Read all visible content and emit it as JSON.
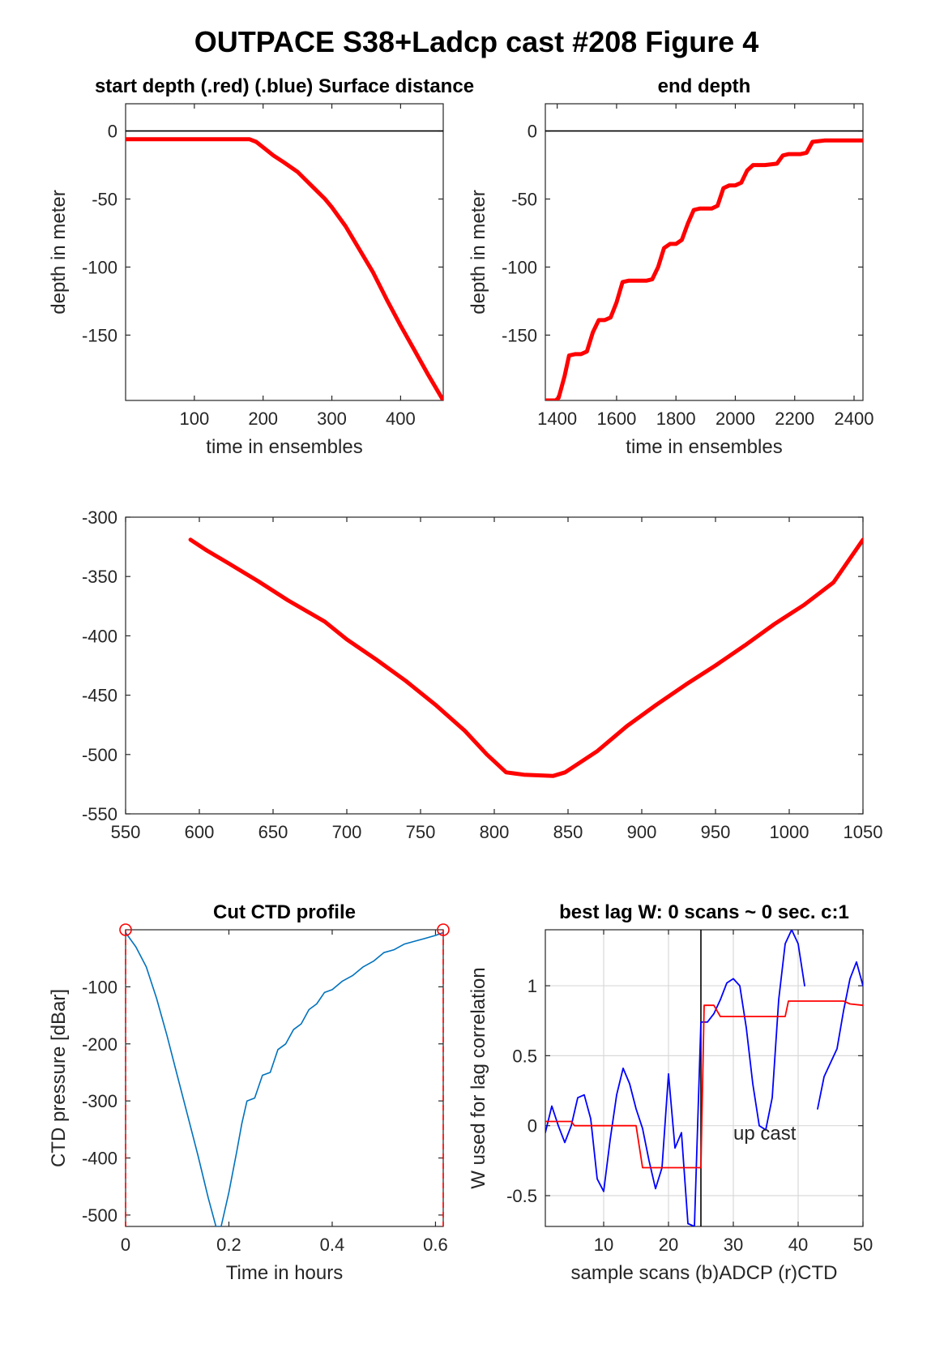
{
  "figure": {
    "title": "OUTPACE S38+Ladcp cast #208    Figure 4"
  },
  "colors": {
    "red": "#ff0000",
    "blue": "#0000ff",
    "ctd": "#0072bd",
    "black": "#000000",
    "grid": "#d9d9d9"
  },
  "chart_data": [
    {
      "id": "start",
      "type": "line",
      "title": "start depth (.red) (.blue) Surface distance",
      "xlabel": "time in ensembles",
      "ylabel": "depth in meter",
      "xlim": [
        0,
        462
      ],
      "ylim": [
        -198,
        20
      ],
      "xticks": [
        100,
        200,
        300,
        400
      ],
      "yticks": [
        0,
        -50,
        -100,
        -150
      ],
      "grid": false,
      "refline_y": 0,
      "series": [
        {
          "color": "#ff0000",
          "x": [
            0,
            50,
            100,
            150,
            180,
            190,
            200,
            215,
            230,
            250,
            270,
            290,
            300,
            320,
            340,
            360,
            380,
            400,
            420,
            440,
            462
          ],
          "y": [
            -6,
            -6,
            -6,
            -6,
            -6,
            -8,
            -12,
            -18,
            -23,
            -30,
            -40,
            -50,
            -56,
            -70,
            -87,
            -104,
            -124,
            -143,
            -161,
            -179,
            -198
          ]
        }
      ]
    },
    {
      "id": "end",
      "type": "line",
      "title": "end depth",
      "xlabel": "time in ensembles",
      "ylabel": "depth in meter",
      "xlim": [
        1360,
        2430
      ],
      "ylim": [
        -198,
        20
      ],
      "xticks": [
        1400,
        1600,
        1800,
        2000,
        2200,
        2400
      ],
      "yticks": [
        0,
        -50,
        -100,
        -150
      ],
      "grid": false,
      "refline_y": 0,
      "series": [
        {
          "color": "#ff0000",
          "x": [
            1360,
            1395,
            1405,
            1425,
            1440,
            1460,
            1480,
            1500,
            1520,
            1540,
            1560,
            1580,
            1600,
            1620,
            1640,
            1660,
            1700,
            1720,
            1740,
            1760,
            1780,
            1800,
            1820,
            1840,
            1860,
            1880,
            1920,
            1940,
            1960,
            1980,
            2000,
            2020,
            2040,
            2060,
            2080,
            2100,
            2140,
            2160,
            2180,
            2220,
            2240,
            2260,
            2300,
            2320,
            2340,
            2430
          ],
          "y": [
            -198,
            -198,
            -196,
            -180,
            -165,
            -164,
            -164,
            -162,
            -148,
            -139,
            -139,
            -137,
            -126,
            -111,
            -110,
            -110,
            -110,
            -109,
            -100,
            -86,
            -83,
            -83,
            -80,
            -68,
            -58,
            -57,
            -57,
            -55,
            -42,
            -40,
            -40,
            -38,
            -29,
            -25,
            -25,
            -25,
            -24,
            -18,
            -17,
            -17,
            -16,
            -8,
            -7,
            -7,
            -7,
            -7
          ]
        }
      ]
    },
    {
      "id": "middle",
      "type": "line",
      "title": "",
      "xlabel": "",
      "ylabel": "",
      "xlim": [
        550,
        1050
      ],
      "ylim": [
        -550,
        -300
      ],
      "xticks": [
        550,
        600,
        650,
        700,
        750,
        800,
        850,
        900,
        950,
        1000,
        1050
      ],
      "yticks": [
        -300,
        -350,
        -400,
        -450,
        -500,
        -550
      ],
      "grid": false,
      "series": [
        {
          "color": "#ff0000",
          "x": [
            594,
            605,
            620,
            640,
            660,
            685,
            700,
            720,
            740,
            760,
            780,
            795,
            808,
            820,
            840,
            848,
            870,
            890,
            910,
            930,
            950,
            970,
            990,
            1010,
            1030,
            1050
          ],
          "y": [
            -319,
            -328,
            -339,
            -354,
            -370,
            -388,
            -403,
            -420,
            -438,
            -458,
            -480,
            -500,
            -515,
            -517,
            -518,
            -515,
            -497,
            -476,
            -458,
            -441,
            -425,
            -408,
            -390,
            -374,
            -355,
            -319
          ]
        }
      ]
    },
    {
      "id": "ctd",
      "type": "line",
      "title": "Cut CTD profile",
      "xlabel": "Time in hours",
      "ylabel": "CTD pressure [dBar]",
      "xlim": [
        0,
        0.615
      ],
      "ylim": [
        -520,
        0
      ],
      "xticks": [
        0,
        0.2,
        0.4,
        0.6
      ],
      "xticklabels": [
        "0",
        "0.2",
        "0.4",
        "0.6"
      ],
      "yticks": [
        -100,
        -200,
        -300,
        -400,
        -500
      ],
      "grid": false,
      "markers": [
        {
          "x": 0,
          "y": 0
        },
        {
          "x": 0.615,
          "y": 0
        }
      ],
      "series": [
        {
          "color": "#0072bd",
          "x": [
            0,
            0.02,
            0.04,
            0.06,
            0.08,
            0.1,
            0.12,
            0.14,
            0.16,
            0.175,
            0.185,
            0.2,
            0.215,
            0.225,
            0.235,
            0.25,
            0.265,
            0.28,
            0.295,
            0.31,
            0.325,
            0.34,
            0.355,
            0.37,
            0.385,
            0.4,
            0.42,
            0.44,
            0.46,
            0.48,
            0.5,
            0.52,
            0.54,
            0.56,
            0.58,
            0.6,
            0.615
          ],
          "y": [
            -5,
            -30,
            -65,
            -120,
            -185,
            -255,
            -325,
            -395,
            -470,
            -520,
            -520,
            -460,
            -390,
            -340,
            -300,
            -295,
            -255,
            -250,
            -210,
            -200,
            -175,
            -165,
            -140,
            -130,
            -110,
            -105,
            -90,
            -80,
            -65,
            -55,
            -40,
            -35,
            -25,
            -20,
            -15,
            -10,
            -5
          ]
        }
      ]
    },
    {
      "id": "lag",
      "type": "line",
      "title": "best lag W: 0 scans ~ 0 sec.  c:1",
      "xlabel": "sample scans (b)ADCP (r)CTD",
      "ylabel": "W used for lag correlation",
      "xlim": [
        1,
        50
      ],
      "ylim": [
        -0.72,
        1.4
      ],
      "xticks": [
        10,
        20,
        30,
        40,
        50
      ],
      "yticks": [
        1,
        0.5,
        0,
        -0.5
      ],
      "grid": true,
      "vline_x": 25,
      "annotation": {
        "text": "up cast",
        "x": 30,
        "y": -0.1
      },
      "series": [
        {
          "name": "ADCP",
          "color": "#0000ff",
          "segments": [
            {
              "x": [
                1,
                2,
                3,
                4,
                5,
                6,
                7,
                8,
                9,
                10,
                11,
                12,
                13,
                14,
                15,
                16,
                17,
                18,
                19,
                20,
                21,
                22,
                23,
                24,
                25,
                26,
                27,
                28,
                29,
                30,
                31,
                32,
                33,
                34,
                35,
                36,
                37,
                38,
                39,
                40,
                41
              ],
              "y": [
                -0.05,
                0.14,
                0.0,
                -0.12,
                0.0,
                0.2,
                0.22,
                0.05,
                -0.38,
                -0.47,
                -0.1,
                0.22,
                0.41,
                0.3,
                0.12,
                -0.02,
                -0.25,
                -0.45,
                -0.3,
                0.37,
                -0.16,
                -0.05,
                -0.7,
                -0.72,
                0.74,
                0.74,
                0.8,
                0.9,
                1.02,
                1.05,
                1.0,
                0.7,
                0.3,
                0.0,
                -0.03,
                0.2,
                0.9,
                1.3,
                1.4,
                1.3,
                1.0
              ]
            },
            {
              "x": [
                43,
                44,
                45,
                46,
                47,
                48,
                49,
                50
              ],
              "y": [
                0.12,
                0.35,
                0.45,
                0.55,
                0.82,
                1.05,
                1.17,
                1.0
              ]
            }
          ]
        },
        {
          "name": "CTD",
          "color": "#ff0000",
          "segments": [
            {
              "x": [
                1,
                5,
                5.5,
                15,
                16,
                25,
                25.5,
                27,
                28,
                38,
                38.5,
                47,
                48,
                50
              ],
              "y": [
                0.03,
                0.03,
                0.0,
                0.0,
                -0.3,
                -0.3,
                0.86,
                0.86,
                0.78,
                0.78,
                0.89,
                0.89,
                0.87,
                0.86
              ]
            }
          ]
        }
      ]
    }
  ]
}
